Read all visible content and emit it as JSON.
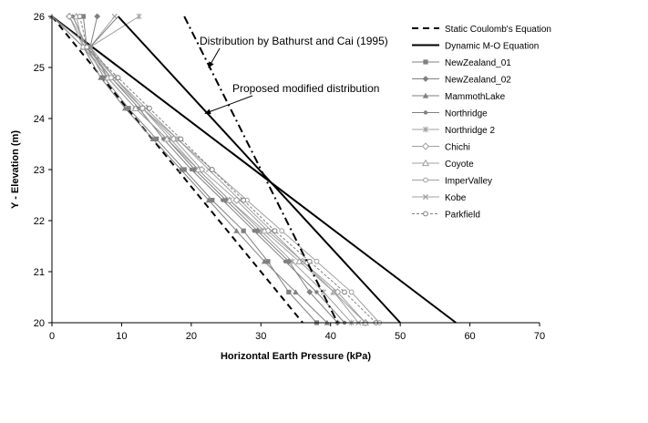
{
  "chart_data": {
    "type": "line",
    "title": "",
    "xlabel": "Horizontal Earth Pressure (kPa)",
    "ylabel": "Y - Elevation (m)",
    "xlim": [
      0,
      70
    ],
    "ylim": [
      20,
      26
    ],
    "xticks": [
      "0",
      "10",
      "20",
      "30",
      "40",
      "50",
      "60",
      "70"
    ],
    "yticks": [
      "20",
      "21",
      "22",
      "23",
      "24",
      "25",
      "26"
    ],
    "legend_position": "right",
    "annotations": [
      {
        "text": "Distribution by Bathurst and Cai (1995)",
        "arrow_to": [
          22.5,
          25.0
        ]
      },
      {
        "text": "Proposed modified distribution",
        "arrow_to": [
          22,
          24.1
        ]
      }
    ],
    "series": [
      {
        "name": "Static Coulomb's Equation",
        "style": "dash",
        "color": "#000000",
        "marker": "none",
        "width": 2,
        "points": [
          [
            0,
            26
          ],
          [
            36,
            20
          ]
        ]
      },
      {
        "name": "Dynamic M-O Equation",
        "style": "solid",
        "color": "#000000",
        "marker": "none",
        "width": 2,
        "points": [
          [
            0,
            26
          ],
          [
            58,
            20
          ]
        ]
      },
      {
        "name": "NewZealand_01",
        "style": "solid",
        "color": "#808080",
        "marker": "square",
        "width": 1,
        "points": [
          [
            4.5,
            26
          ],
          [
            5,
            25.4
          ],
          [
            7.5,
            24.8
          ],
          [
            11,
            24.2
          ],
          [
            15,
            23.6
          ],
          [
            19,
            23.0
          ],
          [
            23,
            22.4
          ],
          [
            27.5,
            21.8
          ],
          [
            31,
            21.2
          ],
          [
            34,
            20.6
          ],
          [
            38,
            20.0
          ]
        ]
      },
      {
        "name": "NewZealand_02",
        "style": "solid",
        "color": "#808080",
        "marker": "diamond",
        "width": 1,
        "points": [
          [
            6.5,
            26
          ],
          [
            5.5,
            25.4
          ],
          [
            8,
            24.8
          ],
          [
            12,
            24.2
          ],
          [
            16.5,
            23.6
          ],
          [
            20.5,
            23.0
          ],
          [
            25,
            22.4
          ],
          [
            29.5,
            21.8
          ],
          [
            34,
            21.2
          ],
          [
            37,
            20.6
          ],
          [
            41,
            20.0
          ]
        ]
      },
      {
        "name": "MammothLake",
        "style": "solid",
        "color": "#808080",
        "marker": "triangle",
        "width": 1,
        "points": [
          [
            0,
            26
          ],
          [
            4.5,
            25.4
          ],
          [
            7,
            24.8
          ],
          [
            10.5,
            24.2
          ],
          [
            14.5,
            23.6
          ],
          [
            18.5,
            23.0
          ],
          [
            22.5,
            22.4
          ],
          [
            26.5,
            21.8
          ],
          [
            30.5,
            21.2
          ],
          [
            35,
            20.6
          ],
          [
            39.5,
            20.0
          ]
        ]
      },
      {
        "name": "Northridge",
        "style": "solid",
        "color": "#808080",
        "marker": "circle-filled",
        "width": 1,
        "points": [
          [
            3,
            26
          ],
          [
            5,
            25.4
          ],
          [
            8.5,
            24.8
          ],
          [
            12.5,
            24.2
          ],
          [
            16,
            23.6
          ],
          [
            20,
            23.0
          ],
          [
            24.5,
            22.4
          ],
          [
            29,
            21.8
          ],
          [
            33.5,
            21.2
          ],
          [
            38,
            20.6
          ],
          [
            42,
            20.0
          ]
        ]
      },
      {
        "name": "Northridge 2",
        "style": "solid",
        "color": "#a0a0a0",
        "marker": "star",
        "width": 1,
        "points": [
          [
            12.5,
            26
          ],
          [
            5.5,
            25.4
          ],
          [
            9,
            24.8
          ],
          [
            13,
            24.2
          ],
          [
            17,
            23.6
          ],
          [
            21,
            23.0
          ],
          [
            25.5,
            22.4
          ],
          [
            30,
            21.8
          ],
          [
            34.5,
            21.2
          ],
          [
            39,
            20.6
          ],
          [
            43,
            20.0
          ]
        ]
      },
      {
        "name": "Chichi",
        "style": "solid",
        "color": "#a0a0a0",
        "marker": "diamond-open",
        "width": 1,
        "points": [
          [
            2.5,
            26
          ],
          [
            5,
            25.4
          ],
          [
            9,
            24.8
          ],
          [
            13,
            24.2
          ],
          [
            17.5,
            23.6
          ],
          [
            21.5,
            23.0
          ],
          [
            26.5,
            22.4
          ],
          [
            31,
            21.8
          ],
          [
            36,
            21.2
          ],
          [
            41,
            20.6
          ],
          [
            45,
            20.0
          ]
        ]
      },
      {
        "name": "Coyote",
        "style": "solid",
        "color": "#a0a0a0",
        "marker": "triangle-open",
        "width": 1,
        "points": [
          [
            3.5,
            26
          ],
          [
            4.5,
            25.4
          ],
          [
            8,
            24.8
          ],
          [
            12,
            24.2
          ],
          [
            16.5,
            23.6
          ],
          [
            21,
            23.0
          ],
          [
            25.5,
            22.4
          ],
          [
            30.5,
            21.8
          ],
          [
            35.5,
            21.2
          ],
          [
            40.5,
            20.6
          ],
          [
            45,
            20.0
          ]
        ]
      },
      {
        "name": "ImperValley",
        "style": "solid",
        "color": "#a0a0a0",
        "marker": "circle-open",
        "width": 1,
        "points": [
          [
            2.5,
            26
          ],
          [
            4.5,
            25.4
          ],
          [
            8.5,
            24.8
          ],
          [
            13,
            24.2
          ],
          [
            18,
            23.6
          ],
          [
            23,
            23.0
          ],
          [
            28,
            22.4
          ],
          [
            33,
            21.8
          ],
          [
            38,
            21.2
          ],
          [
            43,
            20.6
          ],
          [
            47,
            20.0
          ]
        ]
      },
      {
        "name": "Kobe",
        "style": "solid",
        "color": "#a0a0a0",
        "marker": "x",
        "width": 1,
        "points": [
          [
            9,
            26
          ],
          [
            5.5,
            25.4
          ],
          [
            9,
            24.8
          ],
          [
            13.5,
            24.2
          ],
          [
            18,
            23.6
          ],
          [
            22.5,
            23.0
          ],
          [
            27,
            22.4
          ],
          [
            31.5,
            21.8
          ],
          [
            36,
            21.2
          ],
          [
            40.5,
            20.6
          ],
          [
            44,
            20.0
          ]
        ]
      },
      {
        "name": "Parkfield",
        "style": "dash-thin",
        "color": "#808080",
        "marker": "circle-open",
        "width": 1,
        "points": [
          [
            4,
            26
          ],
          [
            5,
            25.4
          ],
          [
            9.5,
            24.8
          ],
          [
            14,
            24.2
          ],
          [
            18.5,
            23.6
          ],
          [
            23,
            23.0
          ],
          [
            27.5,
            22.4
          ],
          [
            32,
            21.8
          ],
          [
            37,
            21.2
          ],
          [
            42,
            20.6
          ],
          [
            46.5,
            20.0
          ]
        ]
      },
      {
        "name": "",
        "style": "dashdot",
        "color": "#000000",
        "marker": "none",
        "width": 2,
        "legend": false,
        "points": [
          [
            19,
            26
          ],
          [
            41,
            20
          ]
        ]
      },
      {
        "name": "",
        "style": "solid",
        "color": "#000000",
        "marker": "none",
        "width": 2,
        "legend": false,
        "points": [
          [
            9.5,
            26
          ],
          [
            50,
            20
          ]
        ]
      },
      {
        "name": "",
        "style": "solid",
        "color": "#808080",
        "marker": "none",
        "width": 1,
        "legend": false,
        "points": [
          [
            0,
            26
          ],
          [
            5.5,
            25.4
          ],
          [
            9.5,
            26
          ]
        ]
      }
    ]
  }
}
